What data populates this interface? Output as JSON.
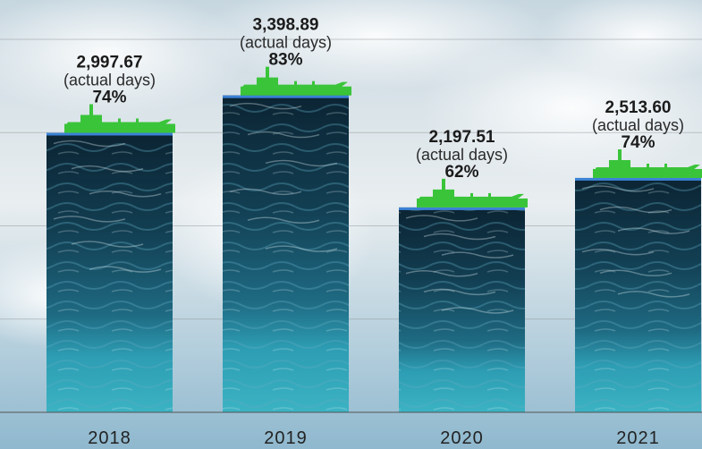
{
  "chart_data": {
    "type": "bar",
    "categories": [
      "2018",
      "2019",
      "2020",
      "2021"
    ],
    "values": [
      2997.67,
      3398.89,
      2197.51,
      2513.6
    ],
    "value_labels": [
      "2,997.67",
      "3,398.89",
      "2,197.51",
      "2,513.60"
    ],
    "unit_note": "(actual days)",
    "percent_labels": [
      "74%",
      "83%",
      "62%",
      "74%"
    ],
    "ylim": [
      0,
      4000
    ],
    "grid": true,
    "title": "",
    "xlabel": "",
    "ylabel": ""
  },
  "colors": {
    "ship": "#3ac43a",
    "water_top": "#0e2a3a",
    "water_mid": "#1c5f78",
    "water_bottom": "#34a6b8",
    "bar_edge": "#3b82d6",
    "sky_light": "#eef2f3",
    "sky_blue": "#a9c6d8"
  },
  "icons": {
    "bar_marker": "cargo-ship-icon"
  }
}
